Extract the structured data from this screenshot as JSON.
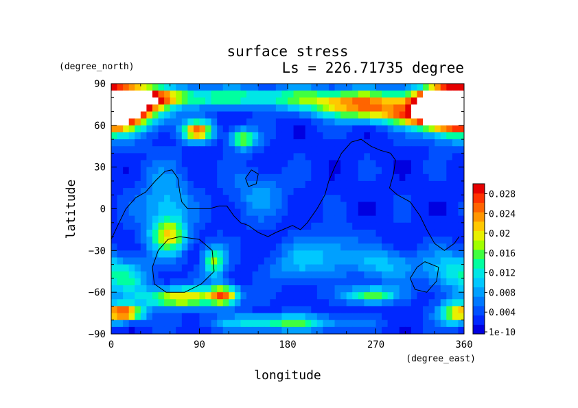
{
  "chart_data": {
    "type": "heatmap",
    "title": "surface stress",
    "subtitle": "Ls = 226.71735 degree",
    "xlabel": "longitude",
    "ylabel": "latitude",
    "x_unit": "(degree_east)",
    "y_unit": "(degree_north)",
    "xlim": [
      0,
      360
    ],
    "ylim": [
      -90,
      90
    ],
    "x_ticks": [
      "0",
      "90",
      "180",
      "270",
      "360"
    ],
    "y_ticks": [
      "90",
      "60",
      "30",
      "0",
      "−30",
      "−60",
      "−90"
    ],
    "colorbar": {
      "min_label": "1e-10",
      "labels": [
        "0.028",
        "0.024",
        "0.02",
        "0.016",
        "0.012",
        "0.008",
        "0.004",
        "1e-10"
      ],
      "range": [
        0,
        0.03
      ],
      "colors": [
        "#0000e0",
        "#0028ff",
        "#0050ff",
        "#0078ff",
        "#00a0ff",
        "#00c8ff",
        "#00e6e6",
        "#00ffa0",
        "#40ff40",
        "#a0ff00",
        "#e8f000",
        "#ffc800",
        "#ff9600",
        "#ff6400",
        "#ff3200",
        "#e60000"
      ]
    },
    "background_value": 0.003,
    "features": [
      {
        "lon": 14,
        "lat": 74,
        "sx": 26,
        "sy": 10,
        "v": 0.03
      },
      {
        "lon": 350,
        "lat": 72,
        "sx": 22,
        "sy": 12,
        "v": 0.03
      },
      {
        "lon": 20,
        "lat": 80,
        "sx": 50,
        "sy": 5,
        "v": 0.012
      },
      {
        "lon": 180,
        "lat": 80,
        "sx": 110,
        "sy": 5,
        "v": 0.011
      },
      {
        "lon": 250,
        "lat": 73,
        "sx": 35,
        "sy": 6,
        "v": 0.017
      },
      {
        "lon": 330,
        "lat": 70,
        "sx": 20,
        "sy": 8,
        "v": 0.02
      },
      {
        "lon": 295,
        "lat": 67,
        "sx": 25,
        "sy": 5,
        "v": 0.012
      },
      {
        "lon": 88,
        "lat": 56,
        "sx": 11,
        "sy": 5,
        "v": 0.022
      },
      {
        "lon": 135,
        "lat": 50,
        "sx": 9,
        "sy": 5,
        "v": 0.016
      },
      {
        "lon": 55,
        "lat": 0,
        "sx": 18,
        "sy": 20,
        "v": 0.008
      },
      {
        "lon": 60,
        "lat": -20,
        "sx": 12,
        "sy": 8,
        "v": 0.013
      },
      {
        "lon": 105,
        "lat": -38,
        "sx": 8,
        "sy": 8,
        "v": 0.014
      },
      {
        "lon": 70,
        "lat": -64,
        "sx": 28,
        "sy": 5,
        "v": 0.018
      },
      {
        "lon": 115,
        "lat": -62,
        "sx": 10,
        "sy": 5,
        "v": 0.02
      },
      {
        "lon": 15,
        "lat": -75,
        "sx": 12,
        "sy": 4,
        "v": 0.024
      },
      {
        "lon": 175,
        "lat": -82,
        "sx": 45,
        "sy": 4,
        "v": 0.012
      },
      {
        "lon": 265,
        "lat": -62,
        "sx": 18,
        "sy": 4,
        "v": 0.014
      },
      {
        "lon": 20,
        "lat": -50,
        "sx": 15,
        "sy": 8,
        "v": 0.007
      },
      {
        "lon": 350,
        "lat": -45,
        "sx": 20,
        "sy": 10,
        "v": 0.009
      },
      {
        "lon": 280,
        "lat": -40,
        "sx": 25,
        "sy": 8,
        "v": 0.007
      },
      {
        "lon": 190,
        "lat": -40,
        "sx": 20,
        "sy": 10,
        "v": 0.006
      },
      {
        "lon": 150,
        "lat": 10,
        "sx": 20,
        "sy": 12,
        "v": 0.005
      },
      {
        "lon": 225,
        "lat": -30,
        "sx": 18,
        "sy": 10,
        "v": 0.006
      },
      {
        "lon": 350,
        "lat": -75,
        "sx": 12,
        "sy": 6,
        "v": 0.015
      }
    ],
    "contours": [
      [
        [
          0,
          -22
        ],
        [
          8,
          -10
        ],
        [
          15,
          0
        ],
        [
          25,
          8
        ],
        [
          35,
          12
        ],
        [
          45,
          20
        ],
        [
          55,
          27
        ],
        [
          62,
          28
        ],
        [
          68,
          22
        ],
        [
          70,
          12
        ],
        [
          72,
          5
        ],
        [
          78,
          0
        ],
        [
          90,
          0
        ],
        [
          100,
          0
        ],
        [
          110,
          2
        ],
        [
          118,
          2
        ],
        [
          125,
          -5
        ],
        [
          132,
          -10
        ],
        [
          140,
          -12
        ],
        [
          150,
          -17
        ],
        [
          160,
          -20
        ],
        [
          168,
          -17
        ],
        [
          175,
          -15
        ],
        [
          185,
          -12
        ],
        [
          193,
          -15
        ],
        [
          200,
          -10
        ],
        [
          210,
          0
        ],
        [
          218,
          10
        ],
        [
          222,
          20
        ],
        [
          228,
          30
        ],
        [
          235,
          40
        ],
        [
          245,
          48
        ],
        [
          255,
          50
        ],
        [
          265,
          45
        ],
        [
          275,
          42
        ],
        [
          285,
          40
        ],
        [
          290,
          35
        ],
        [
          288,
          25
        ],
        [
          284,
          15
        ],
        [
          292,
          10
        ],
        [
          305,
          5
        ],
        [
          315,
          -5
        ],
        [
          322,
          -15
        ],
        [
          330,
          -25
        ],
        [
          340,
          -30
        ],
        [
          350,
          -25
        ],
        [
          355,
          -20
        ]
      ],
      [
        [
          70,
          -20
        ],
        [
          58,
          -22
        ],
        [
          48,
          -30
        ],
        [
          42,
          -42
        ],
        [
          44,
          -54
        ],
        [
          56,
          -60
        ],
        [
          75,
          -60
        ],
        [
          92,
          -54
        ],
        [
          105,
          -45
        ],
        [
          103,
          -30
        ],
        [
          90,
          -22
        ],
        [
          70,
          -20
        ]
      ],
      [
        [
          143,
          28
        ],
        [
          137,
          22
        ],
        [
          140,
          16
        ],
        [
          148,
          18
        ],
        [
          150,
          25
        ],
        [
          143,
          28
        ]
      ],
      [
        [
          320,
          -38
        ],
        [
          312,
          -42
        ],
        [
          305,
          -50
        ],
        [
          310,
          -58
        ],
        [
          322,
          -60
        ],
        [
          332,
          -52
        ],
        [
          334,
          -42
        ],
        [
          320,
          -38
        ]
      ]
    ]
  }
}
